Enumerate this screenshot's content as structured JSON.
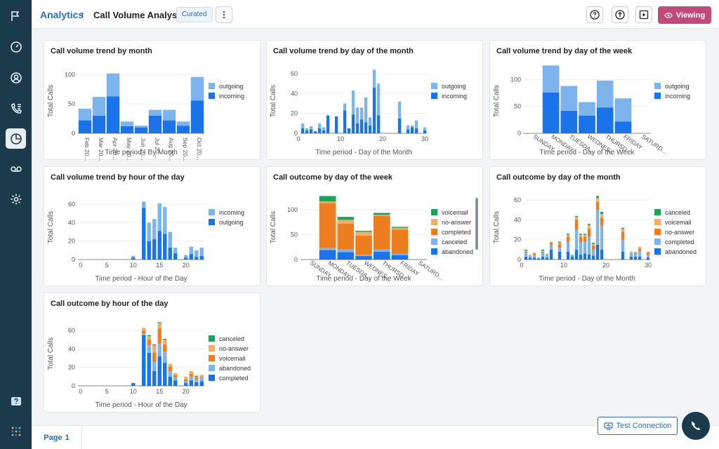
{
  "header": {
    "breadcrumb_link": "Analytics",
    "breadcrumb_sep": "›",
    "title": "Call Volume Analysis",
    "badge": "Curated",
    "viewing_label": "Viewing"
  },
  "sidebar": {
    "items": [
      {
        "name": "flags-icon"
      },
      {
        "name": "dashboard-icon"
      },
      {
        "name": "contacts-icon"
      },
      {
        "name": "call-log-icon"
      },
      {
        "name": "analytics-icon"
      },
      {
        "name": "voicemail-icon"
      },
      {
        "name": "settings-icon"
      },
      {
        "name": "help-icon"
      },
      {
        "name": "apps-grid-icon"
      }
    ]
  },
  "footer": {
    "page_label": "Page",
    "page_number": "1",
    "test_connection_label": "Test Connection"
  },
  "colors": {
    "accent": "#c04a78",
    "brand": "#2f6eb5",
    "sidebar": "#1b3a4b",
    "outgoing": "#7eb4ee",
    "incoming": "#1a73e8",
    "voicemail": "#1aa35a",
    "no_answer": "#f2ad6e",
    "completed": "#ed7d1e",
    "canceled": "#7eb4ee",
    "abandoned": "#1a73e8"
  },
  "chart_data": [
    {
      "title": "Call volume trend by month",
      "type": "bar",
      "xlabel": "Time period - By Month",
      "ylabel": "Total Calls",
      "ylim": [
        0,
        110
      ],
      "yticks": [
        0,
        50,
        100
      ],
      "tick_mode": "categories",
      "categories": [
        "Feb 20...",
        "Mar 20...",
        "Apr 20...",
        "May 20...",
        "Jun 20...",
        "Jul 20...",
        "Aug 20...",
        "Sep 20...",
        "Oct 20..."
      ],
      "series": [
        {
          "name": "incoming",
          "color": "#1a73e8",
          "values": [
            22,
            30,
            63,
            12,
            10,
            30,
            22,
            13,
            56
          ]
        },
        {
          "name": "outgoing",
          "color": "#7eb4ee",
          "values": [
            20,
            32,
            39,
            8,
            3,
            10,
            18,
            7,
            40
          ]
        }
      ],
      "legend": [
        "outgoing",
        "incoming"
      ]
    },
    {
      "title": "Call volume trend by day of the month",
      "type": "bar",
      "xlabel": "Time period - Day of the Month",
      "ylabel": "Total Calls",
      "ylim": [
        0,
        65
      ],
      "yticks": [
        0,
        20,
        40,
        60
      ],
      "tick_mode": "numeric",
      "xticks": [
        0,
        10,
        20,
        30
      ],
      "categories": [
        "1",
        "2",
        "3",
        "4",
        "5",
        "6",
        "7",
        "8",
        "9",
        "10",
        "11",
        "12",
        "13",
        "14",
        "15",
        "16",
        "17",
        "18",
        "19",
        "20",
        "21",
        "22",
        "23",
        "24",
        "25",
        "26",
        "27",
        "28",
        "29",
        "30"
      ],
      "series": [
        {
          "name": "incoming",
          "color": "#1a73e8",
          "values": [
            5,
            3,
            4,
            2,
            5,
            3,
            18,
            0,
            17,
            0,
            23,
            5,
            19,
            10,
            14,
            11,
            8,
            46,
            18,
            0,
            0,
            0,
            0,
            15,
            0,
            4,
            6,
            5,
            0,
            3
          ]
        },
        {
          "name": "outgoing",
          "color": "#7eb4ee",
          "values": [
            5,
            2,
            3,
            0,
            5,
            3,
            0,
            0,
            0,
            0,
            7,
            0,
            24,
            16,
            12,
            25,
            8,
            18,
            32,
            0,
            0,
            0,
            0,
            17,
            0,
            4,
            2,
            8,
            0,
            3
          ]
        }
      ],
      "legend": [
        "outgoing",
        "incoming"
      ]
    },
    {
      "title": "Call volume trend by day of the week",
      "type": "bar",
      "xlabel": "Time period - Day of the Week",
      "ylabel": "Total Calls",
      "ylim": [
        0,
        120
      ],
      "yticks": [
        0,
        50,
        100
      ],
      "tick_mode": "categories",
      "categories": [
        "SUNDAY",
        "MONDAY",
        "TUESDA...",
        "WEDNES...",
        "THURSD...",
        "FRIDAY",
        "SATURD..."
      ],
      "series": [
        {
          "name": "incoming",
          "color": "#1a73e8",
          "values": [
            0,
            76,
            42,
            33,
            48,
            22,
            0
          ]
        },
        {
          "name": "outgoing",
          "color": "#7eb4ee",
          "values": [
            0,
            50,
            46,
            25,
            50,
            43,
            0
          ]
        }
      ],
      "legend": [
        "outgoing",
        "incoming"
      ]
    },
    {
      "title": "Call volume trend by hour of the day",
      "type": "bar",
      "xlabel": "Time period - Hour of the Day",
      "ylabel": "Total Calls",
      "ylim": [
        0,
        70
      ],
      "yticks": [
        0,
        20,
        40,
        60
      ],
      "tick_mode": "numeric",
      "xticks": [
        0,
        5,
        10,
        15,
        20
      ],
      "categories": [
        "0",
        "1",
        "2",
        "3",
        "4",
        "5",
        "6",
        "7",
        "8",
        "9",
        "10",
        "11",
        "12",
        "13",
        "14",
        "15",
        "16",
        "17",
        "18",
        "19",
        "20",
        "21",
        "22",
        "23"
      ],
      "series": [
        {
          "name": "outgoing",
          "color": "#1a73e8",
          "values": [
            0,
            0,
            0,
            0,
            0,
            0,
            0,
            0,
            0,
            0,
            2,
            0,
            56,
            20,
            22,
            31,
            28,
            13,
            7,
            0,
            2,
            6,
            3,
            4
          ]
        },
        {
          "name": "incoming",
          "color": "#7eb4ee",
          "values": [
            0,
            0,
            0,
            0,
            0,
            0,
            0,
            0,
            0,
            0,
            2,
            0,
            7,
            20,
            22,
            30,
            29,
            17,
            6,
            0,
            3,
            8,
            7,
            9
          ]
        }
      ],
      "legend": [
        "incoming",
        "outgoing"
      ]
    },
    {
      "title": "Call outcome by day of the week",
      "type": "bar",
      "xlabel": "Time period - Day of the Week",
      "ylabel": "Total Calls",
      "ylim": [
        0,
        130
      ],
      "yticks": [
        0,
        50,
        100
      ],
      "tick_mode": "categories",
      "categories": [
        "SUNDAY",
        "MONDAY",
        "TUESDA...",
        "WEDNES...",
        "THURSD...",
        "FRIDAY",
        "SATURD..."
      ],
      "series": [
        {
          "name": "abandoned",
          "color": "#1a73e8",
          "values": [
            0,
            19,
            15,
            7,
            16,
            9,
            0
          ]
        },
        {
          "name": "canceled",
          "color": "#7eb4ee",
          "values": [
            0,
            5,
            5,
            3,
            4,
            3,
            0
          ]
        },
        {
          "name": "completed",
          "color": "#ed7d1e",
          "values": [
            0,
            90,
            52,
            38,
            68,
            48,
            0
          ]
        },
        {
          "name": "no-answer",
          "color": "#f2ad6e",
          "values": [
            0,
            3,
            8,
            8,
            2,
            4,
            0
          ]
        },
        {
          "name": "voicemail",
          "color": "#1aa35a",
          "values": [
            0,
            11,
            6,
            2,
            4,
            2,
            0
          ]
        }
      ],
      "legend": [
        "voicemail",
        "no-answer",
        "completed",
        "canceled",
        "abandoned"
      ]
    },
    {
      "title": "Call outcome by day of the month",
      "type": "bar",
      "xlabel": "Time period - Day of the Month",
      "ylabel": "Total Calls",
      "ylim": [
        0,
        65
      ],
      "yticks": [
        0,
        20,
        40,
        60
      ],
      "tick_mode": "numeric",
      "xticks": [
        0,
        10,
        20,
        30
      ],
      "categories": [
        "1",
        "2",
        "3",
        "4",
        "5",
        "6",
        "7",
        "8",
        "9",
        "10",
        "11",
        "12",
        "13",
        "14",
        "15",
        "16",
        "17",
        "18",
        "19",
        "20",
        "21",
        "22",
        "23",
        "24",
        "25",
        "26",
        "27",
        "28",
        "29",
        "30"
      ],
      "series": [
        {
          "name": "abandoned",
          "color": "#1a73e8",
          "values": [
            3,
            2,
            2,
            1,
            3,
            2,
            10,
            0,
            8,
            0,
            8,
            3,
            10,
            5,
            6,
            5,
            4,
            15,
            10,
            0,
            0,
            0,
            0,
            8,
            0,
            3,
            3,
            3,
            0,
            2
          ]
        },
        {
          "name": "completed",
          "color": "#7eb4ee",
          "values": [
            4,
            2,
            3,
            1,
            4,
            3,
            5,
            0,
            4,
            0,
            10,
            2,
            20,
            12,
            12,
            18,
            6,
            35,
            24,
            0,
            0,
            0,
            0,
            12,
            0,
            4,
            3,
            6,
            0,
            3
          ]
        },
        {
          "name": "no-answer",
          "color": "#ed7d1e",
          "values": [
            1,
            0,
            1,
            0,
            1,
            0,
            2,
            0,
            4,
            0,
            5,
            0,
            10,
            6,
            5,
            8,
            4,
            8,
            8,
            0,
            0,
            0,
            0,
            8,
            0,
            0,
            1,
            2,
            0,
            2
          ]
        },
        {
          "name": "voicemail",
          "color": "#f2ad6e",
          "values": [
            1,
            1,
            1,
            0,
            1,
            1,
            1,
            0,
            1,
            0,
            2,
            0,
            3,
            2,
            2,
            4,
            2,
            4,
            4,
            0,
            0,
            0,
            0,
            3,
            0,
            1,
            1,
            2,
            0,
            1
          ]
        },
        {
          "name": "canceled",
          "color": "#1aa35a",
          "values": [
            1,
            0,
            0,
            0,
            1,
            0,
            0,
            0,
            1,
            0,
            1,
            0,
            1,
            1,
            1,
            1,
            1,
            2,
            2,
            0,
            0,
            0,
            0,
            1,
            0,
            0,
            0,
            0,
            0,
            0
          ]
        }
      ],
      "legend": [
        "canceled",
        "voicemail",
        "no-answer",
        "completed",
        "abandoned"
      ]
    },
    {
      "title": "Call outcome by hour of the day",
      "type": "bar",
      "xlabel": "Time period - Hour of the Day",
      "ylabel": "Total Calls",
      "ylim": [
        0,
        70
      ],
      "yticks": [
        0,
        20,
        40,
        60
      ],
      "tick_mode": "numeric",
      "xticks": [
        0,
        5,
        10,
        15,
        20
      ],
      "categories": [
        "0",
        "1",
        "2",
        "3",
        "4",
        "5",
        "6",
        "7",
        "8",
        "9",
        "10",
        "11",
        "12",
        "13",
        "14",
        "15",
        "16",
        "17",
        "18",
        "19",
        "20",
        "21",
        "22",
        "23"
      ],
      "series": [
        {
          "name": "completed",
          "color": "#1a73e8",
          "values": [
            0,
            0,
            0,
            0,
            0,
            0,
            0,
            0,
            0,
            0,
            3,
            0,
            55,
            36,
            16,
            32,
            25,
            10,
            6,
            0,
            3,
            6,
            4,
            5
          ]
        },
        {
          "name": "abandoned",
          "color": "#7eb4ee",
          "values": [
            0,
            0,
            0,
            0,
            0,
            0,
            0,
            0,
            0,
            0,
            0,
            0,
            2,
            8,
            10,
            14,
            12,
            6,
            3,
            0,
            2,
            4,
            3,
            4
          ]
        },
        {
          "name": "voicemail",
          "color": "#ed7d1e",
          "values": [
            0,
            0,
            0,
            0,
            0,
            0,
            0,
            0,
            0,
            0,
            0,
            0,
            3,
            6,
            10,
            16,
            8,
            5,
            3,
            0,
            2,
            3,
            2,
            1
          ]
        },
        {
          "name": "no-answer",
          "color": "#f2ad6e",
          "values": [
            0,
            0,
            0,
            0,
            0,
            0,
            0,
            0,
            0,
            0,
            0,
            0,
            3,
            4,
            8,
            6,
            5,
            3,
            2,
            0,
            3,
            3,
            1,
            2
          ]
        },
        {
          "name": "canceled",
          "color": "#1aa35a",
          "values": [
            0,
            0,
            0,
            0,
            0,
            0,
            0,
            0,
            0,
            0,
            0,
            0,
            0,
            1,
            1,
            1,
            1,
            0,
            0,
            0,
            0,
            0,
            1,
            0
          ]
        }
      ],
      "legend": [
        "canceled",
        "no-answer",
        "voicemail",
        "abandoned",
        "completed"
      ]
    }
  ]
}
